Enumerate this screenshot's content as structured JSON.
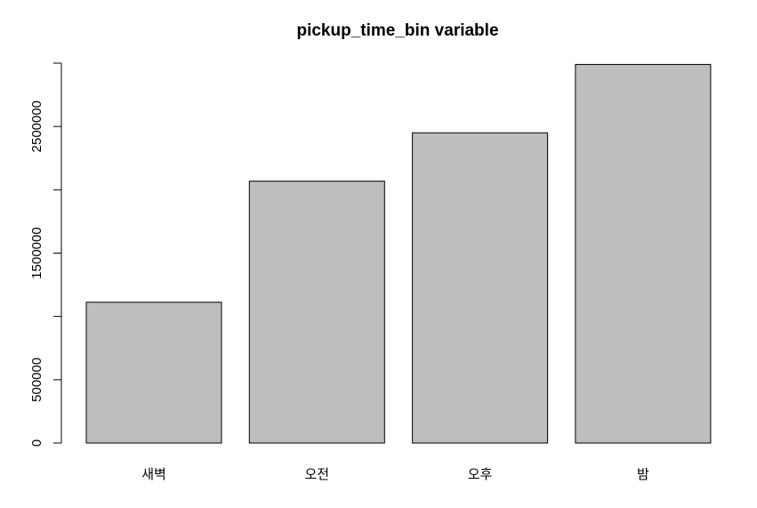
{
  "chart_data": {
    "type": "bar",
    "title": "pickup_time_bin variable",
    "xlabel": "",
    "ylabel": "",
    "categories": [
      "새벽",
      "오전",
      "오후",
      "밤"
    ],
    "values": [
      1112000,
      2068000,
      2450000,
      2990000
    ],
    "ylim": [
      0,
      3000000
    ],
    "y_ticks": [
      0,
      500000,
      1000000,
      1500000,
      2000000,
      2500000,
      3000000
    ],
    "y_tick_labels": [
      "0",
      "500000",
      "",
      "1500000",
      "",
      "2500000",
      ""
    ],
    "bar_color": "#bebebe",
    "grid": false,
    "legend": "none"
  }
}
